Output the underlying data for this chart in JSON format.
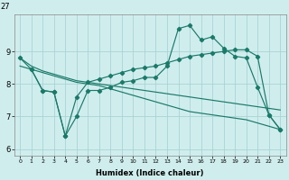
{
  "xlabel": "Humidex (Indice chaleur)",
  "bg_color": "#d0eded",
  "grid_color": "#a8d4d4",
  "line_color": "#1a7a6a",
  "xlim": [
    -0.5,
    23.5
  ],
  "ylim": [
    5.8,
    10.15
  ],
  "yticks": [
    6,
    7,
    8,
    9
  ],
  "xticks": [
    0,
    1,
    2,
    3,
    4,
    5,
    6,
    7,
    8,
    9,
    10,
    11,
    12,
    13,
    14,
    15,
    16,
    17,
    18,
    19,
    20,
    21,
    22,
    23
  ],
  "top_label": "27",
  "s1_x": [
    0,
    1,
    2,
    3,
    4,
    5,
    6,
    7,
    8,
    9,
    10,
    11,
    12,
    13,
    14,
    15,
    16,
    17,
    18,
    19,
    20,
    21,
    22,
    23
  ],
  "s1_y": [
    8.8,
    8.45,
    7.8,
    7.75,
    6.4,
    7.0,
    7.8,
    7.8,
    7.9,
    8.05,
    8.1,
    8.2,
    8.2,
    8.55,
    9.7,
    9.8,
    9.35,
    9.45,
    9.1,
    8.85,
    8.8,
    7.9,
    7.05,
    6.6
  ],
  "s2_x": [
    1,
    2,
    3,
    4,
    5,
    6,
    7,
    8,
    9,
    10,
    11,
    12,
    13,
    14,
    15,
    16,
    17,
    18,
    19,
    20,
    21,
    22,
    23
  ],
  "s2_y": [
    8.45,
    7.8,
    7.75,
    6.4,
    7.6,
    8.05,
    8.15,
    8.25,
    8.35,
    8.45,
    8.5,
    8.55,
    8.65,
    8.75,
    8.85,
    8.9,
    8.95,
    9.0,
    9.05,
    9.05,
    8.85,
    7.05,
    6.6
  ],
  "s3_x": [
    0,
    1,
    2,
    3,
    4,
    5,
    6,
    7,
    8,
    9,
    10,
    11,
    12,
    13,
    14,
    15,
    16,
    17,
    18,
    19,
    20,
    21,
    22,
    23
  ],
  "s3_y": [
    8.55,
    8.45,
    8.35,
    8.25,
    8.15,
    8.05,
    8.0,
    7.95,
    7.85,
    7.75,
    7.65,
    7.55,
    7.45,
    7.35,
    7.25,
    7.15,
    7.1,
    7.05,
    7.0,
    6.95,
    6.9,
    6.8,
    6.7,
    6.6
  ],
  "s4_x": [
    0,
    1,
    2,
    3,
    4,
    5,
    6,
    7,
    8,
    9,
    10,
    11,
    12,
    13,
    14,
    15,
    16,
    17,
    18,
    19,
    20,
    21,
    22,
    23
  ],
  "s4_y": [
    8.8,
    8.55,
    8.4,
    8.3,
    8.2,
    8.1,
    8.05,
    8.0,
    7.95,
    7.9,
    7.85,
    7.8,
    7.75,
    7.7,
    7.65,
    7.6,
    7.55,
    7.5,
    7.45,
    7.4,
    7.35,
    7.3,
    7.25,
    7.2
  ]
}
